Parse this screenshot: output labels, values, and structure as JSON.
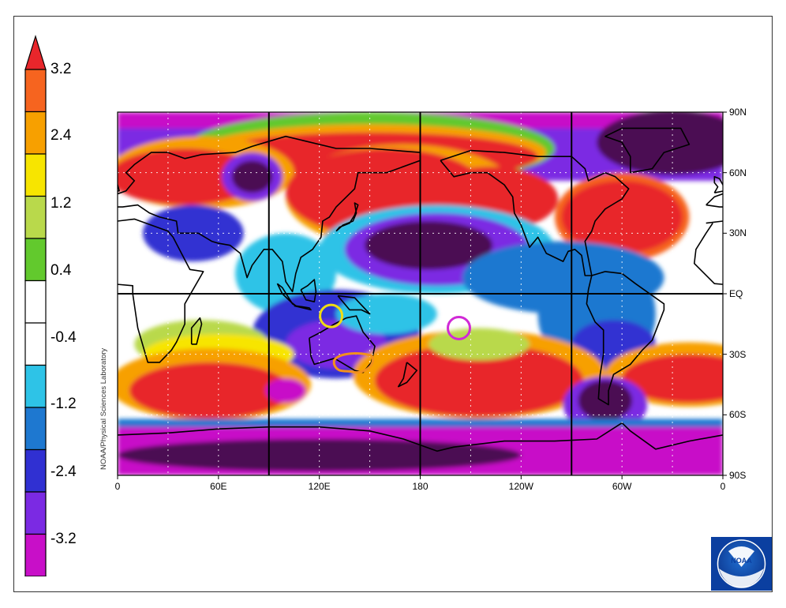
{
  "colorbar": {
    "labels": [
      "3.2",
      "2.4",
      "1.2",
      "0.4",
      "-0.4",
      "-1.2",
      "-2.4",
      "-3.2"
    ],
    "colors": {
      "above_3.2": "#e8262b",
      "2.4_3.2": "#f6641f",
      "1.8_2.4": "#f7a000",
      "1.2_1.8": "#f7e500",
      "0.8_1.2": "#b9d94b",
      "0.4_0.8": "#62c92d",
      "neutral": "#ffffff",
      "-0.8_-0.4": "#2ec3e7",
      "-1.2_-0.8": "#1e78d0",
      "-1.8_-1.2": "#3030d2",
      "-2.4_-1.8": "#7b2ae3",
      "-3.2_-2.4": "#c80fc8",
      "below_-3.2": "#4b0a52"
    }
  },
  "map": {
    "x_labels": [
      "0",
      "60E",
      "120E",
      "180",
      "120W",
      "60W",
      "0"
    ],
    "y_labels": [
      "90N",
      "60N",
      "30N",
      "EQ",
      "30S",
      "60S",
      "90S"
    ],
    "credit": "NOAA/Physical Sciences Laboratory",
    "annotations": [
      {
        "shape": "circle",
        "color": "#f0dc14",
        "lon": 127,
        "lat": -11
      },
      {
        "shape": "loop",
        "color": "#f2901e",
        "lon": 140,
        "lat": -34
      },
      {
        "shape": "circle",
        "color": "#d12ad6",
        "lon": 203,
        "lat": -17
      }
    ]
  },
  "logo": {
    "text": "NOAA"
  }
}
